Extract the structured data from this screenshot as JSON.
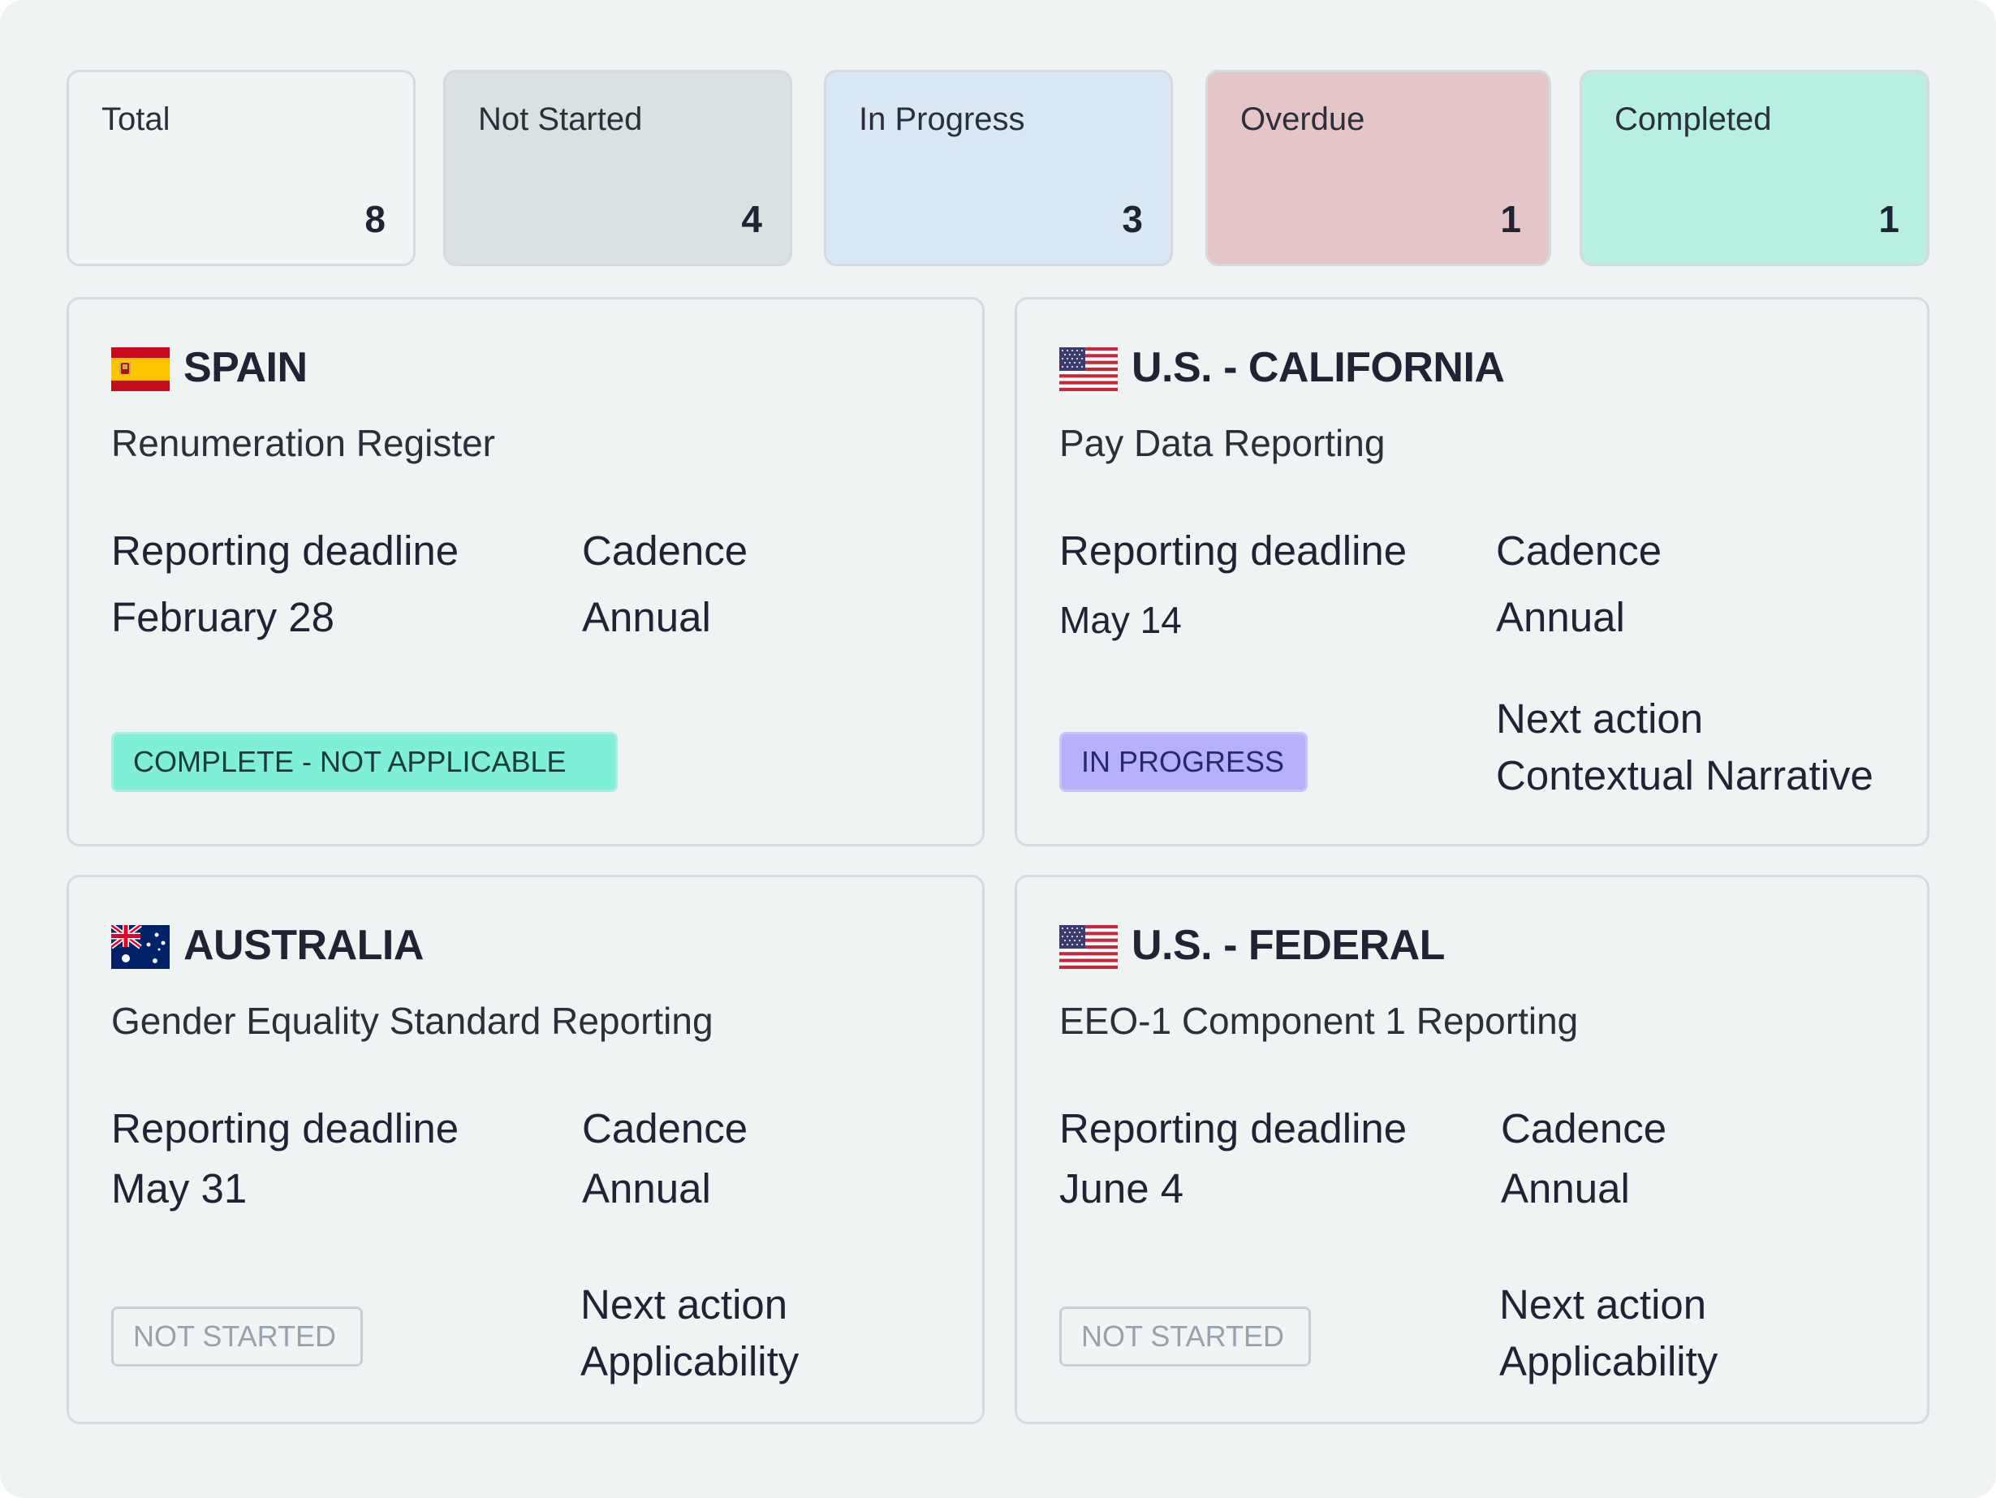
{
  "summary": {
    "total": {
      "label": "Total",
      "count": "8"
    },
    "not_started": {
      "label": "Not Started",
      "count": "4"
    },
    "in_progress": {
      "label": "In Progress",
      "count": "3"
    },
    "overdue": {
      "label": "Overdue",
      "count": "1"
    },
    "completed": {
      "label": "Completed",
      "count": "1"
    }
  },
  "colors": {
    "not_started": "#d9e1e3",
    "in_progress": "#d9e7f7",
    "overdue": "#e4c5c8",
    "completed": "#b7f0e2",
    "badge_complete": "#7ff0d6",
    "badge_in_progress": "#b7b1fb"
  },
  "cards": [
    {
      "country": "SPAIN",
      "flag_icon": "spain-flag-icon",
      "program": "Renumeration Register",
      "deadline_label": "Reporting deadline",
      "deadline": "February 28",
      "cadence_label": "Cadence",
      "cadence": "Annual",
      "status": "COMPLETE - NOT APPLICABLE"
    },
    {
      "country": "U.S. - CALIFORNIA",
      "flag_icon": "us-flag-icon",
      "program": "Pay Data Reporting",
      "deadline_label": "Reporting deadline",
      "deadline": "May 14",
      "cadence_label": "Cadence",
      "cadence": "Annual",
      "status": "IN PROGRESS",
      "next_action_label": "Next action",
      "next_action": "Contextual Narrative"
    },
    {
      "country": "AUSTRALIA",
      "flag_icon": "australia-flag-icon",
      "program": "Gender Equality Standard Reporting",
      "deadline_label": "Reporting deadline",
      "deadline": "May 31",
      "cadence_label": "Cadence",
      "cadence": "Annual",
      "status": "NOT STARTED",
      "next_action_label": "Next action",
      "next_action": "Applicability"
    },
    {
      "country": "U.S. - FEDERAL",
      "flag_icon": "us-flag-icon",
      "program": "EEO-1 Component 1 Reporting",
      "deadline_label": "Reporting deadline",
      "deadline": "June 4",
      "cadence_label": "Cadence",
      "cadence": "Annual",
      "status": "NOT STARTED",
      "next_action_label": "Next action",
      "next_action": "Applicability"
    }
  ]
}
